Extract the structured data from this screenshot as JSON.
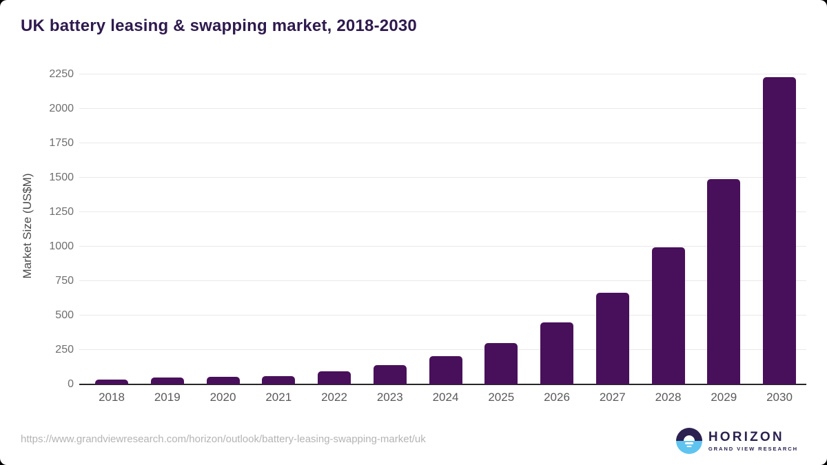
{
  "page": {
    "title": "UK battery leasing & swapping market, 2018-2030"
  },
  "chart_data": {
    "type": "bar",
    "title": "UK battery leasing & swapping market, 2018-2030",
    "categories": [
      "2018",
      "2019",
      "2020",
      "2021",
      "2022",
      "2023",
      "2024",
      "2025",
      "2026",
      "2027",
      "2028",
      "2029",
      "2030"
    ],
    "values": [
      36,
      48,
      54,
      62,
      93,
      139,
      205,
      300,
      450,
      665,
      995,
      1490,
      2228
    ],
    "xlabel": "",
    "ylabel": "Market Size (US$M)",
    "ylim": [
      0,
      2300
    ],
    "yticks": [
      0,
      250,
      500,
      750,
      1000,
      1250,
      1500,
      1750,
      2000,
      2250
    ],
    "grid": "horizontal",
    "legend": "none",
    "bar_color": "#48105a"
  },
  "footer": {
    "source_url": "https://www.grandviewresearch.com/horizon/outlook/battery-leasing-swapping-market/uk",
    "logo": {
      "name": "HORIZON",
      "subtitle": "GRAND VIEW RESEARCH"
    }
  },
  "colors": {
    "bar": "#48105a",
    "title_text": "#2e1a4e",
    "gridline": "#e9e9e9",
    "axis_line": "#262626",
    "y_tick_text": "#6e6e6e",
    "x_tick_text": "#595959",
    "url_text": "#b4b4b4",
    "logo_dark": "#2c2150",
    "logo_blue": "#5fc4ef"
  }
}
